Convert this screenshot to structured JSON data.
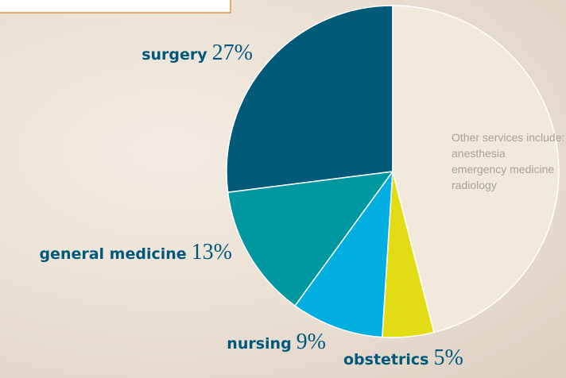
{
  "chart_data": {
    "type": "pie",
    "categories": [
      "surgery",
      "general medicine",
      "nursing",
      "obstetrics",
      null
    ],
    "values": [
      27,
      13,
      9,
      5,
      46
    ],
    "value_labels": [
      "27%",
      "13%",
      "9%",
      "5%",
      null
    ],
    "colors": [
      "#005a78",
      "#0098a0",
      "#00aedf",
      "#e1dc14",
      "#f3e8dc"
    ],
    "annotation": {
      "title": "Other services include:",
      "items": [
        "anesthesia",
        "emergency medicine",
        "radiology"
      ]
    }
  }
}
